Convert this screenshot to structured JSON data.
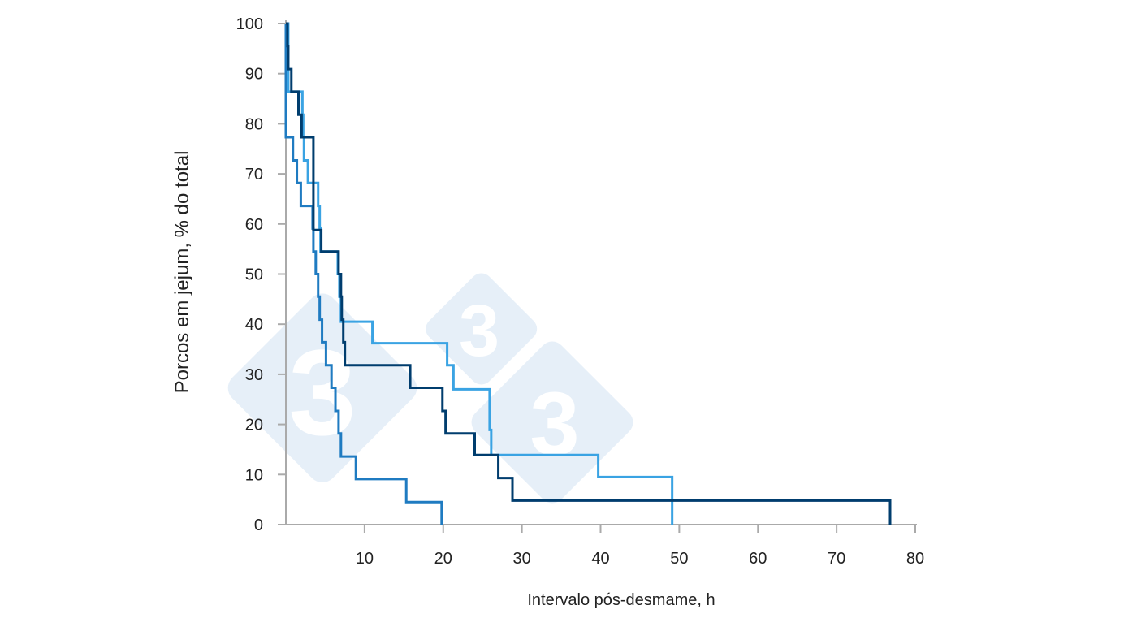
{
  "chart_data": {
    "type": "line",
    "step": true,
    "title": "",
    "xlabel": "Intervalo pós-desmame, h",
    "ylabel": "Porcos em jejum, % do total",
    "xlim": [
      0,
      80
    ],
    "ylim": [
      0,
      100
    ],
    "xticks": [
      10,
      20,
      30,
      40,
      50,
      60,
      70,
      80
    ],
    "yticks": [
      0,
      10,
      20,
      30,
      40,
      50,
      60,
      70,
      80,
      90,
      100
    ],
    "grid": false,
    "series": [
      {
        "color": "#1f7bc1",
        "points": [
          [
            0,
            100
          ],
          [
            0,
            77.3
          ],
          [
            0.9,
            72.7
          ],
          [
            1.4,
            68.2
          ],
          [
            1.9,
            63.6
          ],
          [
            3.4,
            59.1
          ],
          [
            3.5,
            54.5
          ],
          [
            3.8,
            50
          ],
          [
            4.1,
            45.5
          ],
          [
            4.3,
            40.9
          ],
          [
            4.6,
            36.4
          ],
          [
            5.1,
            31.8
          ],
          [
            5.8,
            27.3
          ],
          [
            6.3,
            22.7
          ],
          [
            6.7,
            18.2
          ],
          [
            7.0,
            13.6
          ],
          [
            8.9,
            9.1
          ],
          [
            15.3,
            4.5
          ],
          [
            19.8,
            0
          ]
        ]
      },
      {
        "color": "#3aa3e3",
        "points": [
          [
            0.2,
            100
          ],
          [
            0.3,
            86.4
          ],
          [
            2.1,
            81.8
          ],
          [
            2.2,
            77.3
          ],
          [
            2.3,
            72.7
          ],
          [
            2.8,
            68.2
          ],
          [
            4.1,
            63.6
          ],
          [
            4.3,
            59.1
          ],
          [
            4.4,
            54.5
          ],
          [
            6.6,
            50
          ],
          [
            6.8,
            45.5
          ],
          [
            7.0,
            40.5
          ],
          [
            11.0,
            36.2
          ],
          [
            20.5,
            31.8
          ],
          [
            21.3,
            27.0
          ],
          [
            25.9,
            18.9
          ],
          [
            26.1,
            13.9
          ],
          [
            39.7,
            9.5
          ],
          [
            49.1,
            0
          ]
        ]
      },
      {
        "color": "#003d6e",
        "points": [
          [
            0,
            100
          ],
          [
            0.2,
            95.5
          ],
          [
            0.3,
            90.9
          ],
          [
            0.7,
            86.4
          ],
          [
            1.6,
            81.8
          ],
          [
            2.0,
            77.3
          ],
          [
            3.5,
            58.8
          ],
          [
            4.5,
            54.5
          ],
          [
            6.7,
            50
          ],
          [
            7.0,
            45.5
          ],
          [
            7.1,
            40.9
          ],
          [
            7.3,
            36.4
          ],
          [
            7.5,
            31.8
          ],
          [
            15.8,
            27.3
          ],
          [
            19.9,
            22.7
          ],
          [
            20.3,
            18.2
          ],
          [
            24.0,
            13.9
          ],
          [
            27.0,
            9.3
          ],
          [
            28.8,
            4.8
          ],
          [
            76.8,
            0
          ]
        ]
      }
    ]
  }
}
